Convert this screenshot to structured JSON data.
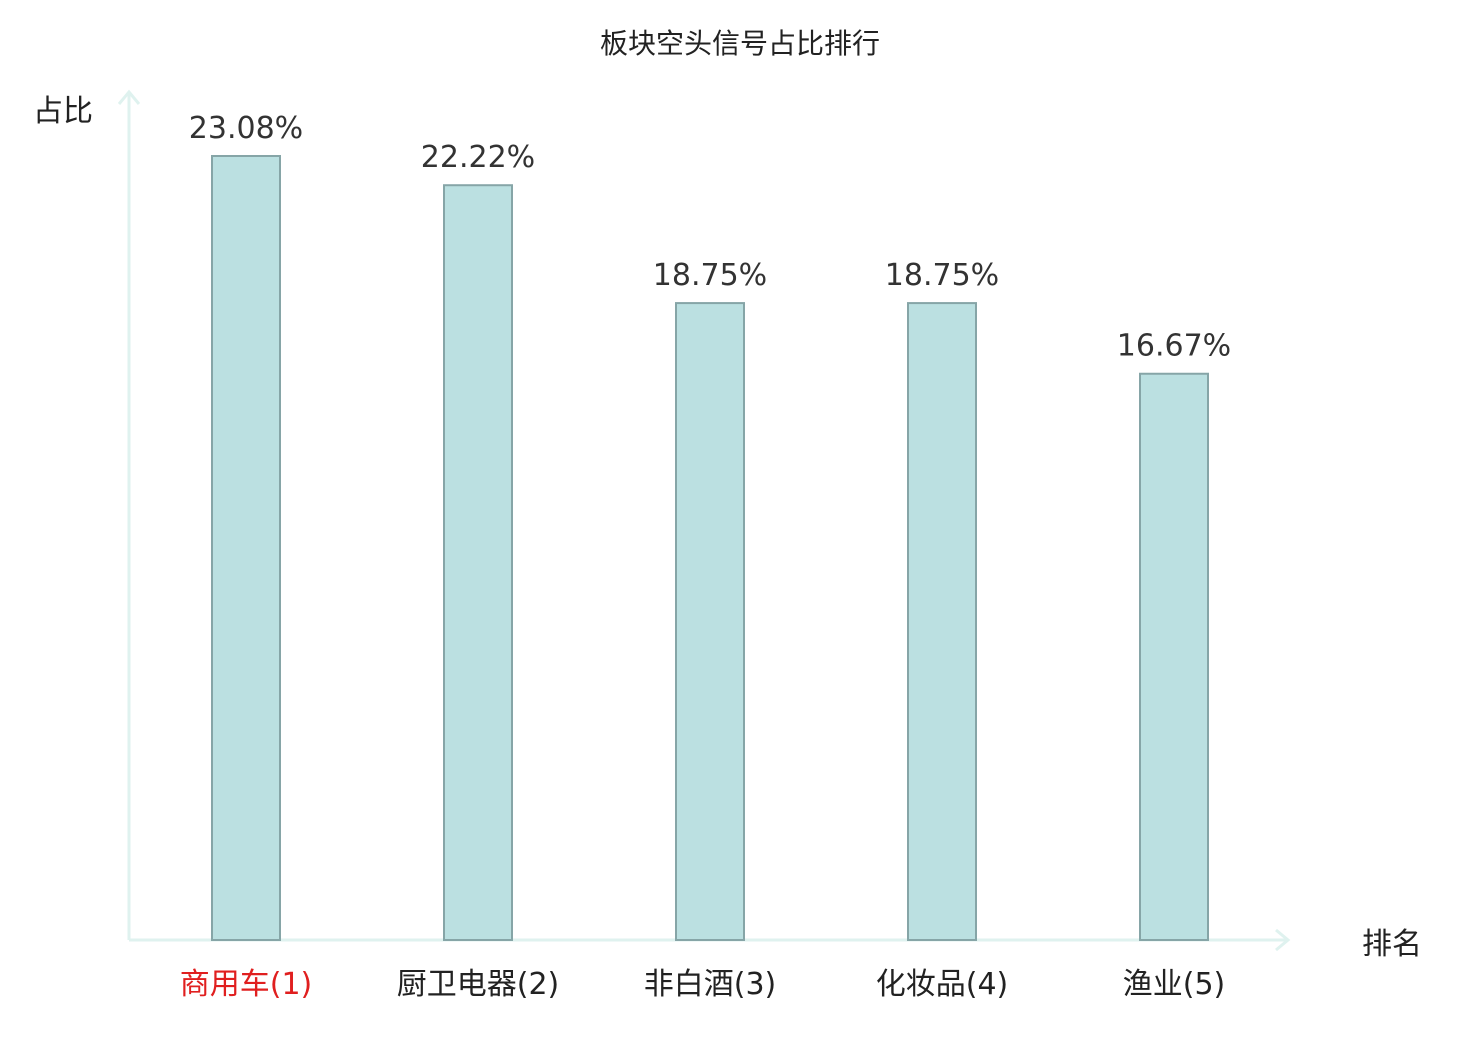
{
  "colors": {
    "bar_fill": "#bbe0e1",
    "bar_stroke": "#86a5a7",
    "axis": "#dff2ef",
    "text": "#222222",
    "value_label": "#333333",
    "highlight": "#e01f1f"
  },
  "chart_data": {
    "type": "bar",
    "title": "板块空头信号占比排行",
    "xlabel": "排名",
    "ylabel": "占比",
    "categories": [
      "商用车(1)",
      "厨卫电器(2)",
      "非白酒(3)",
      "化妆品(4)",
      "渔业(5)"
    ],
    "values": [
      23.08,
      22.22,
      18.75,
      18.75,
      16.67
    ],
    "value_labels": [
      "23.08%",
      "22.22%",
      "18.75%",
      "18.75%",
      "16.67%"
    ],
    "highlight_index": 0,
    "ylim": [
      0,
      23.08
    ],
    "grid": false,
    "legend": "none"
  }
}
